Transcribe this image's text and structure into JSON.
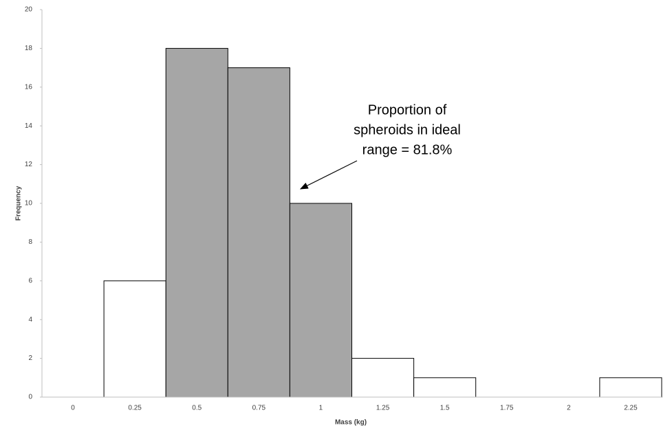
{
  "chart_data": {
    "type": "bar",
    "categories": [
      "0",
      "0.25",
      "0.5",
      "0.75",
      "1",
      "1.25",
      "1.5",
      "1.75",
      "2",
      "2.25"
    ],
    "values": [
      0,
      6,
      18,
      17,
      10,
      2,
      1,
      0,
      0,
      1
    ],
    "colors": [
      "#ffffff",
      "#ffffff",
      "#a6a6a6",
      "#a6a6a6",
      "#a6a6a6",
      "#ffffff",
      "#ffffff",
      "#ffffff",
      "#ffffff",
      "#ffffff"
    ],
    "ylim": [
      0,
      20
    ],
    "yticks": [
      0,
      2,
      4,
      6,
      8,
      10,
      12,
      14,
      16,
      18,
      20
    ],
    "x_label": "Mass  (kg)",
    "y_label": "Frequency",
    "annotation": [
      "Proportion of",
      "spheroids in ideal",
      "range = 81.8%"
    ]
  }
}
